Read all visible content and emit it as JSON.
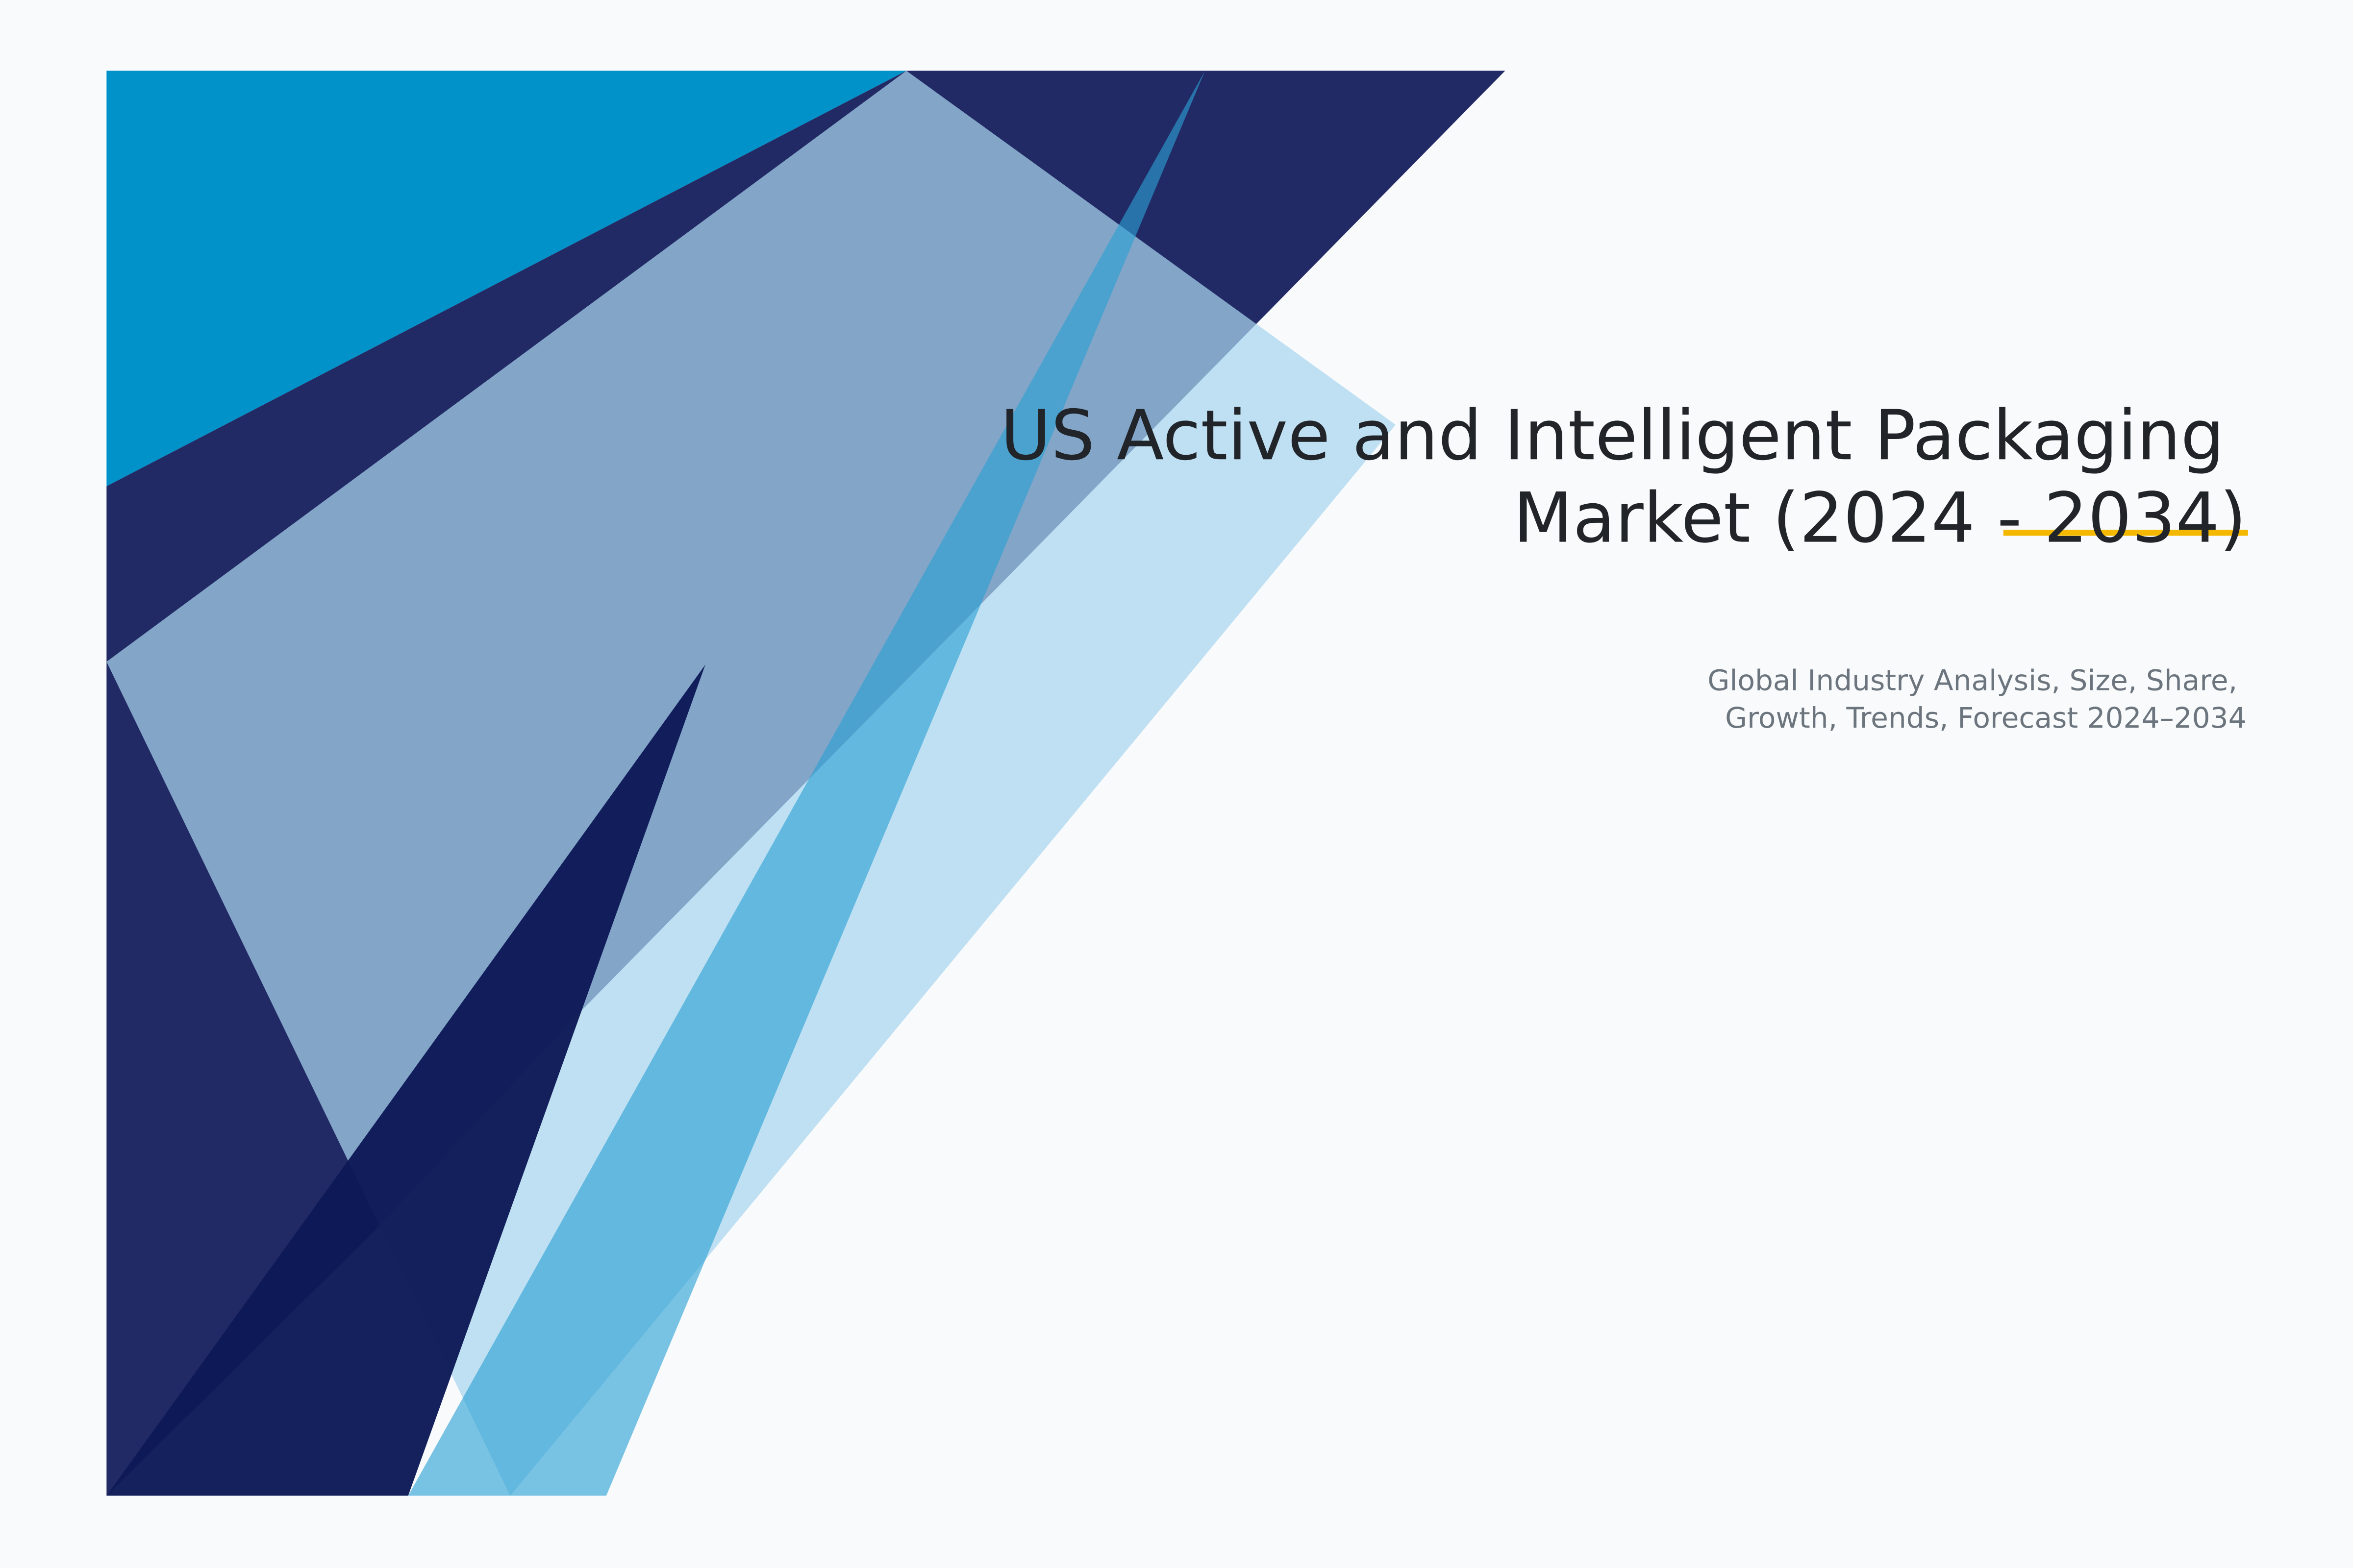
{
  "cover": {
    "title_lines": [
      "US Active and Intelligent Packaging",
      "Market (2024 - 2034)"
    ],
    "subtitle_lines": [
      "Global Industry Analysis, Size, Share,",
      "Growth, Trends, Forecast 2024–2034"
    ]
  },
  "colors": {
    "background": "#f8fafc",
    "cyan": "#0092c8",
    "navy": "#222a66",
    "deep_navy": "#0d1a57",
    "light_blue": "#8ec8e8",
    "mid_blue": "#3aa8d8",
    "accent_underline": "#f5b800",
    "title_text": "#212529",
    "subtitle_text": "#6c757d"
  }
}
